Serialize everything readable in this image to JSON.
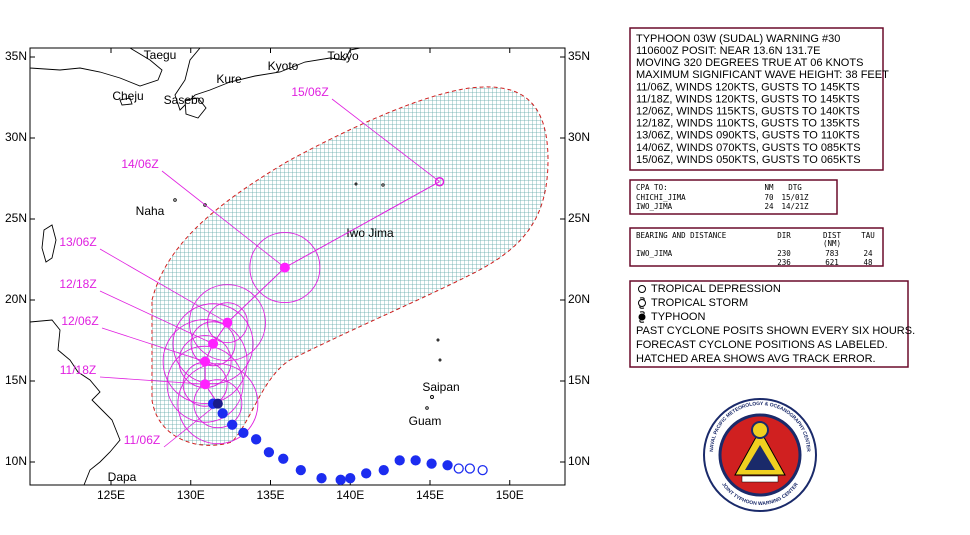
{
  "map": {
    "lon_ticks": [
      {
        "value": 125,
        "label": "125E"
      },
      {
        "value": 130,
        "label": "130E"
      },
      {
        "value": 135,
        "label": "135E"
      },
      {
        "value": 140,
        "label": "140E"
      },
      {
        "value": 145,
        "label": "145E"
      },
      {
        "value": 150,
        "label": "150E"
      }
    ],
    "lat_ticks": [
      {
        "value": 10,
        "label": "10N"
      },
      {
        "value": 15,
        "label": "15N"
      },
      {
        "value": 20,
        "label": "20N"
      },
      {
        "value": 25,
        "label": "25N"
      },
      {
        "value": 30,
        "label": "30N"
      },
      {
        "value": 35,
        "label": "35N"
      }
    ],
    "places": [
      "Taegu",
      "Tokyo",
      "Kyoto",
      "Kure",
      "Cheju",
      "Sasebo",
      "Naha",
      "Iwo Jima",
      "Saipan",
      "Guam",
      "Dapa"
    ],
    "past_track": {
      "lon": [
        131.4,
        132.0,
        132.6,
        133.3,
        134.1,
        134.9,
        135.8,
        136.9,
        138.2,
        139.4,
        140.0,
        141.0,
        142.1,
        143.1,
        144.1,
        145.1,
        146.1,
        146.8,
        147.5,
        148.3
      ],
      "lat": [
        13.6,
        13.0,
        12.3,
        11.8,
        11.4,
        10.6,
        10.2,
        9.5,
        9.0,
        8.9,
        9.0,
        9.3,
        9.5,
        10.1,
        10.1,
        9.9,
        9.8,
        9.6,
        9.6,
        9.5
      ]
    },
    "forecast": [
      {
        "label": "11/06Z",
        "lon": 131.7,
        "lat": 13.6
      },
      {
        "label": "11/18Z",
        "lon": 130.9,
        "lat": 14.8
      },
      {
        "label": "12/06Z",
        "lon": 130.9,
        "lat": 16.2
      },
      {
        "label": "12/18Z",
        "lon": 131.4,
        "lat": 17.3
      },
      {
        "label": "13/06Z",
        "lon": 132.3,
        "lat": 18.6
      },
      {
        "label": "14/06Z",
        "lon": 135.9,
        "lat": 22.0
      },
      {
        "label": "15/06Z",
        "lon": 145.6,
        "lat": 27.3
      }
    ]
  },
  "warning": {
    "lines": [
      "TYPHOON 03W (SUDAL) WARNING #30",
      "110600Z POSIT: NEAR 13.6N 131.7E",
      "MOVING 320 DEGREES TRUE AT 06 KNOTS",
      "MAXIMUM SIGNIFICANT WAVE HEIGHT: 38 FEET",
      "11/06Z, WINDS 120KTS, GUSTS TO 145KTS",
      "11/18Z, WINDS 120KTS, GUSTS TO 145KTS",
      "12/06Z, WINDS 115KTS, GUSTS TO 140KTS",
      "12/18Z, WINDS 110KTS, GUSTS TO 135KTS",
      "13/06Z, WINDS 090KTS, GUSTS TO 110KTS",
      "14/06Z, WINDS 070KTS, GUSTS TO 085KTS",
      "15/06Z, WINDS 050KTS, GUSTS TO 065KTS"
    ]
  },
  "cpa": {
    "header": [
      "CPA TO:",
      "NM",
      "DTG"
    ],
    "rows": [
      [
        "CHICHI_JIMA",
        "70",
        "15/01Z"
      ],
      [
        "IWO_JIMA",
        "24",
        "14/21Z"
      ]
    ]
  },
  "bearing": {
    "header": [
      "BEARING AND DISTANCE",
      "DIR",
      "DIST",
      "(NM)",
      "TAU"
    ],
    "rows": [
      [
        "IWO_JIMA",
        "230",
        "783",
        "24"
      ],
      [
        "",
        "236",
        "621",
        "48"
      ]
    ]
  },
  "legend": {
    "items": [
      "TROPICAL DEPRESSION",
      "TROPICAL STORM",
      "TYPHOON"
    ],
    "notes": [
      "PAST CYCLONE POSITS SHOWN EVERY SIX HOURS.",
      "FORECAST CYCLONE POSITIONS AS LABELED.",
      "HATCHED AREA SHOWS AVG TRACK ERROR."
    ]
  },
  "logo": {
    "top": "NAVAL PACIFIC METEOROLOGY & OCEANOGRAPHY CENTER",
    "bottom": "JOINT TYPHOON WARNING CENTER"
  }
}
